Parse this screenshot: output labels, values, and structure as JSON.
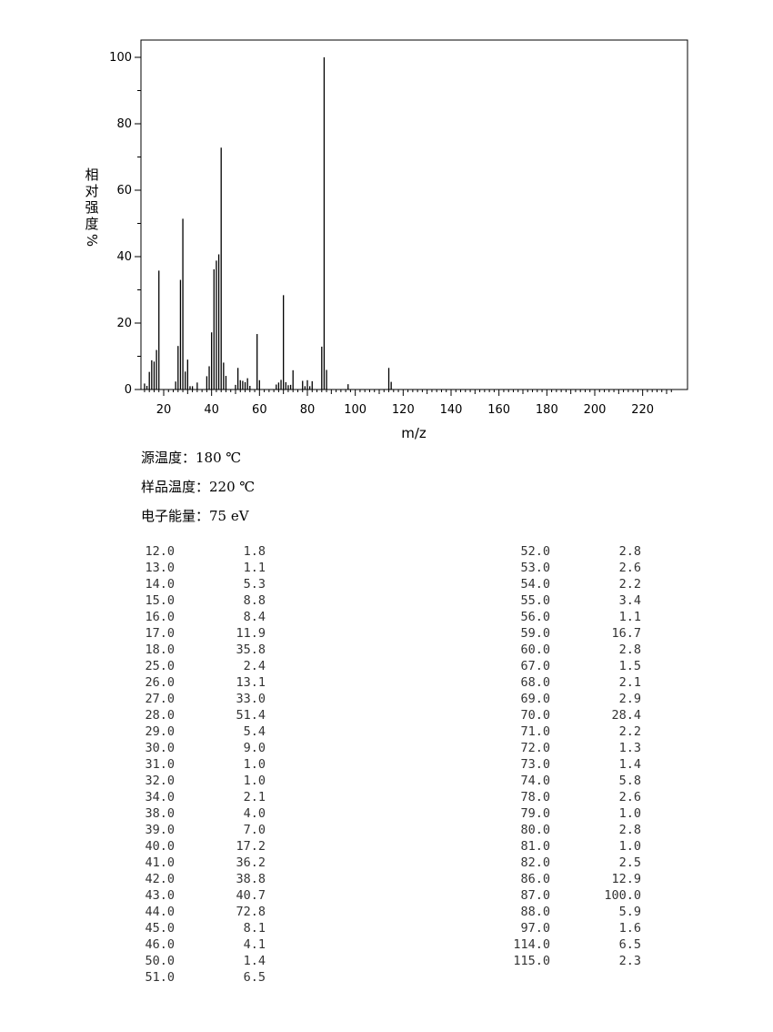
{
  "conditions": {
    "source_temp": "源温度：180 ℃",
    "sample_temp": "样品温度：220 ℃",
    "electron_energy": "电子能量：75 eV"
  },
  "chart_data": {
    "type": "bar",
    "ylabel": "相对强度 %",
    "ylabel_chars": [
      "相",
      "对",
      "强",
      "度",
      "%"
    ],
    "xlabel": "m/z",
    "xlim": [
      10,
      233
    ],
    "ylim": [
      0,
      105
    ],
    "x_ticks": [
      20,
      40,
      60,
      80,
      100,
      120,
      140,
      160,
      180,
      200,
      220
    ],
    "y_ticks": [
      0,
      20,
      40,
      60,
      80,
      100
    ],
    "grid": false,
    "peaks": [
      {
        "mz": "12.0",
        "intensity": "1.8"
      },
      {
        "mz": "13.0",
        "intensity": "1.1"
      },
      {
        "mz": "14.0",
        "intensity": "5.3"
      },
      {
        "mz": "15.0",
        "intensity": "8.8"
      },
      {
        "mz": "16.0",
        "intensity": "8.4"
      },
      {
        "mz": "17.0",
        "intensity": "11.9"
      },
      {
        "mz": "18.0",
        "intensity": "35.8"
      },
      {
        "mz": "25.0",
        "intensity": "2.4"
      },
      {
        "mz": "26.0",
        "intensity": "13.1"
      },
      {
        "mz": "27.0",
        "intensity": "33.0"
      },
      {
        "mz": "28.0",
        "intensity": "51.4"
      },
      {
        "mz": "29.0",
        "intensity": "5.4"
      },
      {
        "mz": "30.0",
        "intensity": "9.0"
      },
      {
        "mz": "31.0",
        "intensity": "1.0"
      },
      {
        "mz": "32.0",
        "intensity": "1.0"
      },
      {
        "mz": "34.0",
        "intensity": "2.1"
      },
      {
        "mz": "38.0",
        "intensity": "4.0"
      },
      {
        "mz": "39.0",
        "intensity": "7.0"
      },
      {
        "mz": "40.0",
        "intensity": "17.2"
      },
      {
        "mz": "41.0",
        "intensity": "36.2"
      },
      {
        "mz": "42.0",
        "intensity": "38.8"
      },
      {
        "mz": "43.0",
        "intensity": "40.7"
      },
      {
        "mz": "44.0",
        "intensity": "72.8"
      },
      {
        "mz": "45.0",
        "intensity": "8.1"
      },
      {
        "mz": "46.0",
        "intensity": "4.1"
      },
      {
        "mz": "50.0",
        "intensity": "1.4"
      },
      {
        "mz": "51.0",
        "intensity": "6.5"
      },
      {
        "mz": "52.0",
        "intensity": "2.8"
      },
      {
        "mz": "53.0",
        "intensity": "2.6"
      },
      {
        "mz": "54.0",
        "intensity": "2.2"
      },
      {
        "mz": "55.0",
        "intensity": "3.4"
      },
      {
        "mz": "56.0",
        "intensity": "1.1"
      },
      {
        "mz": "59.0",
        "intensity": "16.7"
      },
      {
        "mz": "60.0",
        "intensity": "2.8"
      },
      {
        "mz": "67.0",
        "intensity": "1.5"
      },
      {
        "mz": "68.0",
        "intensity": "2.1"
      },
      {
        "mz": "69.0",
        "intensity": "2.9"
      },
      {
        "mz": "70.0",
        "intensity": "28.4"
      },
      {
        "mz": "71.0",
        "intensity": "2.2"
      },
      {
        "mz": "72.0",
        "intensity": "1.3"
      },
      {
        "mz": "73.0",
        "intensity": "1.4"
      },
      {
        "mz": "74.0",
        "intensity": "5.8"
      },
      {
        "mz": "78.0",
        "intensity": "2.6"
      },
      {
        "mz": "79.0",
        "intensity": "1.0"
      },
      {
        "mz": "80.0",
        "intensity": "2.8"
      },
      {
        "mz": "81.0",
        "intensity": "1.0"
      },
      {
        "mz": "82.0",
        "intensity": "2.5"
      },
      {
        "mz": "86.0",
        "intensity": "12.9"
      },
      {
        "mz": "87.0",
        "intensity": "100.0"
      },
      {
        "mz": "88.0",
        "intensity": "5.9"
      },
      {
        "mz": "97.0",
        "intensity": "1.6"
      },
      {
        "mz": "114.0",
        "intensity": "6.5"
      },
      {
        "mz": "115.0",
        "intensity": "2.3"
      }
    ]
  }
}
